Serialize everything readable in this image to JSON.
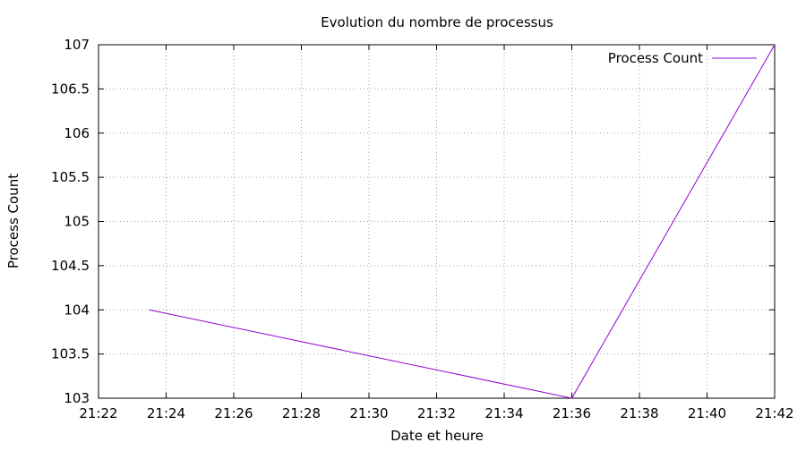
{
  "chart_data": {
    "type": "line",
    "title": "Evolution du nombre de processus",
    "xlabel": "Date et heure",
    "ylabel": "Process Count",
    "x_ticks": [
      "21:22",
      "21:24",
      "21:26",
      "21:28",
      "21:30",
      "21:32",
      "21:34",
      "21:36",
      "21:38",
      "21:40",
      "21:42"
    ],
    "y_ticks": [
      "103",
      "103.5",
      "104",
      "104.5",
      "105",
      "105.5",
      "106",
      "106.5",
      "107"
    ],
    "xlim": [
      "21:22",
      "21:42"
    ],
    "ylim": [
      103,
      107
    ],
    "grid": true,
    "legend_position": "top-right",
    "series": [
      {
        "name": "Process Count",
        "color": "#9400d3",
        "x": [
          "21:23:30",
          "21:36:00",
          "21:42:00"
        ],
        "y": [
          104,
          103,
          107
        ]
      }
    ]
  }
}
